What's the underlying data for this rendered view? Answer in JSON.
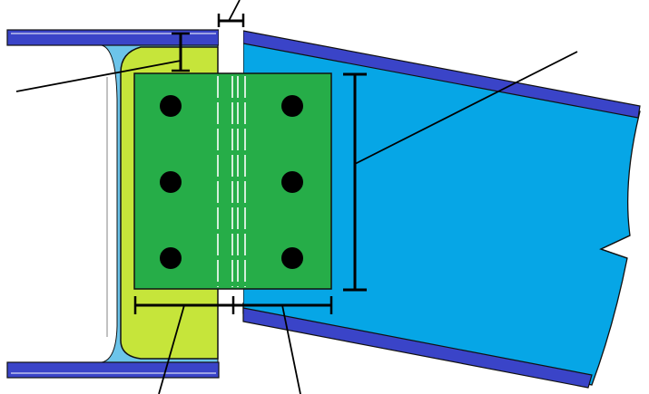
{
  "colors": {
    "flange": "#3a44c8",
    "web": "#6cc4ea",
    "beam": "#06a6e6",
    "stiffener": "#c6e53a",
    "plate": "#26ad48",
    "bolt": "#000000",
    "line": "#000000",
    "outline": "#111111",
    "background": "#ffffff"
  },
  "diagram": {
    "labels": [],
    "bolt_rows": 3,
    "bolt_columns": 2,
    "bolt_count": 6
  }
}
